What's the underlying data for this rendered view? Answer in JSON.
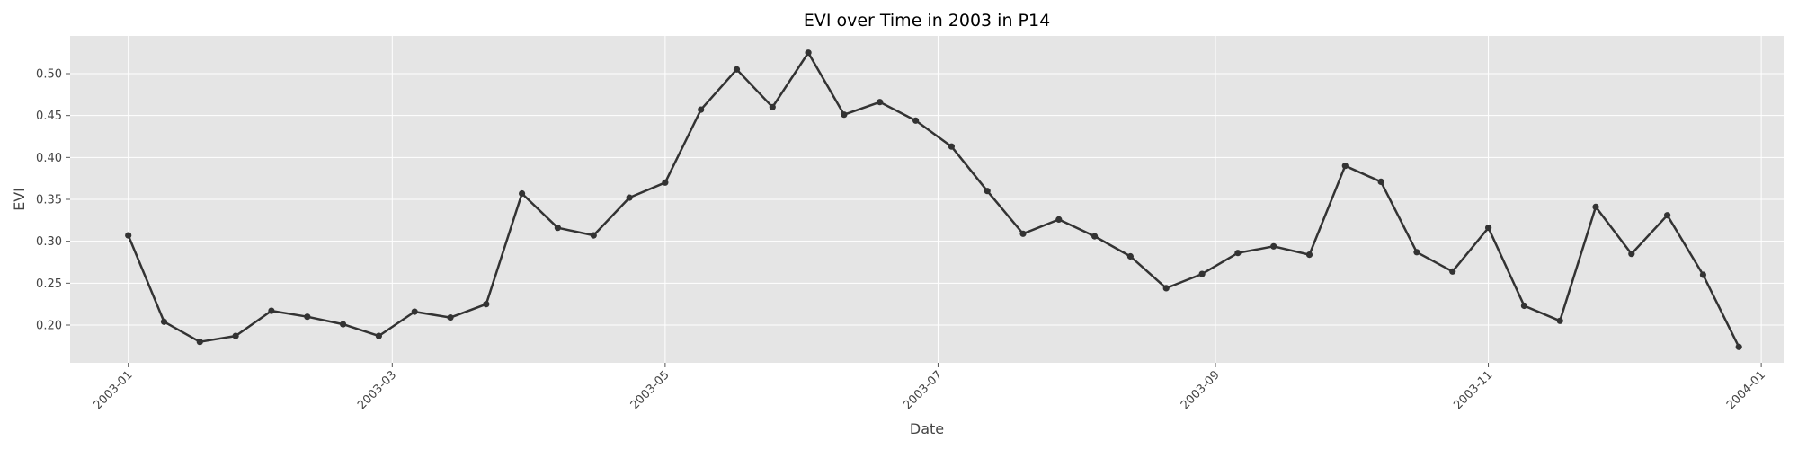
{
  "chart_data": {
    "type": "line",
    "title": "EVI over Time in 2003 in P14",
    "xlabel": "Date",
    "ylabel": "EVI",
    "x_axis_type": "date",
    "xlim": [
      "2002-12-19",
      "2004-01-06"
    ],
    "ylim": [
      0.155,
      0.545
    ],
    "x_ticks": [
      "2003-01",
      "2003-03",
      "2003-05",
      "2003-07",
      "2003-09",
      "2003-11",
      "2004-01"
    ],
    "x_tick_rotation_deg": 45,
    "y_ticks": [
      0.2,
      0.25,
      0.3,
      0.35,
      0.4,
      0.45,
      0.5
    ],
    "y_tick_labels": [
      "0.20",
      "0.25",
      "0.30",
      "0.35",
      "0.40",
      "0.45",
      "0.50"
    ],
    "grid": true,
    "style": "ggplot",
    "colors": {
      "plot_background": "#e5e5e5",
      "grid": "#ffffff",
      "line": "#333333",
      "marker": "#333333"
    },
    "series": [
      {
        "x": [
          "2003-01-01",
          "2003-01-09",
          "2003-01-17",
          "2003-01-25",
          "2003-02-02",
          "2003-02-10",
          "2003-02-18",
          "2003-02-26",
          "2003-03-06",
          "2003-03-14",
          "2003-03-22",
          "2003-03-30",
          "2003-04-07",
          "2003-04-15",
          "2003-04-23",
          "2003-05-01",
          "2003-05-09",
          "2003-05-17",
          "2003-05-25",
          "2003-06-02",
          "2003-06-10",
          "2003-06-18",
          "2003-06-26",
          "2003-07-04",
          "2003-07-12",
          "2003-07-20",
          "2003-07-28",
          "2003-08-05",
          "2003-08-13",
          "2003-08-21",
          "2003-08-29",
          "2003-09-06",
          "2003-09-14",
          "2003-09-22",
          "2003-09-30",
          "2003-10-08",
          "2003-10-16",
          "2003-10-24",
          "2003-11-01",
          "2003-11-09",
          "2003-11-17",
          "2003-11-25",
          "2003-12-03",
          "2003-12-11",
          "2003-12-19",
          "2003-12-27"
        ],
        "values": [
          0.307,
          0.204,
          0.18,
          0.187,
          0.217,
          0.21,
          0.201,
          0.187,
          0.216,
          0.209,
          0.225,
          0.357,
          0.316,
          0.307,
          0.352,
          0.37,
          0.457,
          0.505,
          0.46,
          0.525,
          0.451,
          0.466,
          0.444,
          0.413,
          0.36,
          0.309,
          0.326,
          0.306,
          0.282,
          0.244,
          0.261,
          0.286,
          0.294,
          0.284,
          0.39,
          0.371,
          0.287,
          0.264,
          0.316,
          0.223,
          0.205,
          0.341,
          0.285,
          0.331,
          0.26,
          0.174
        ]
      }
    ]
  }
}
